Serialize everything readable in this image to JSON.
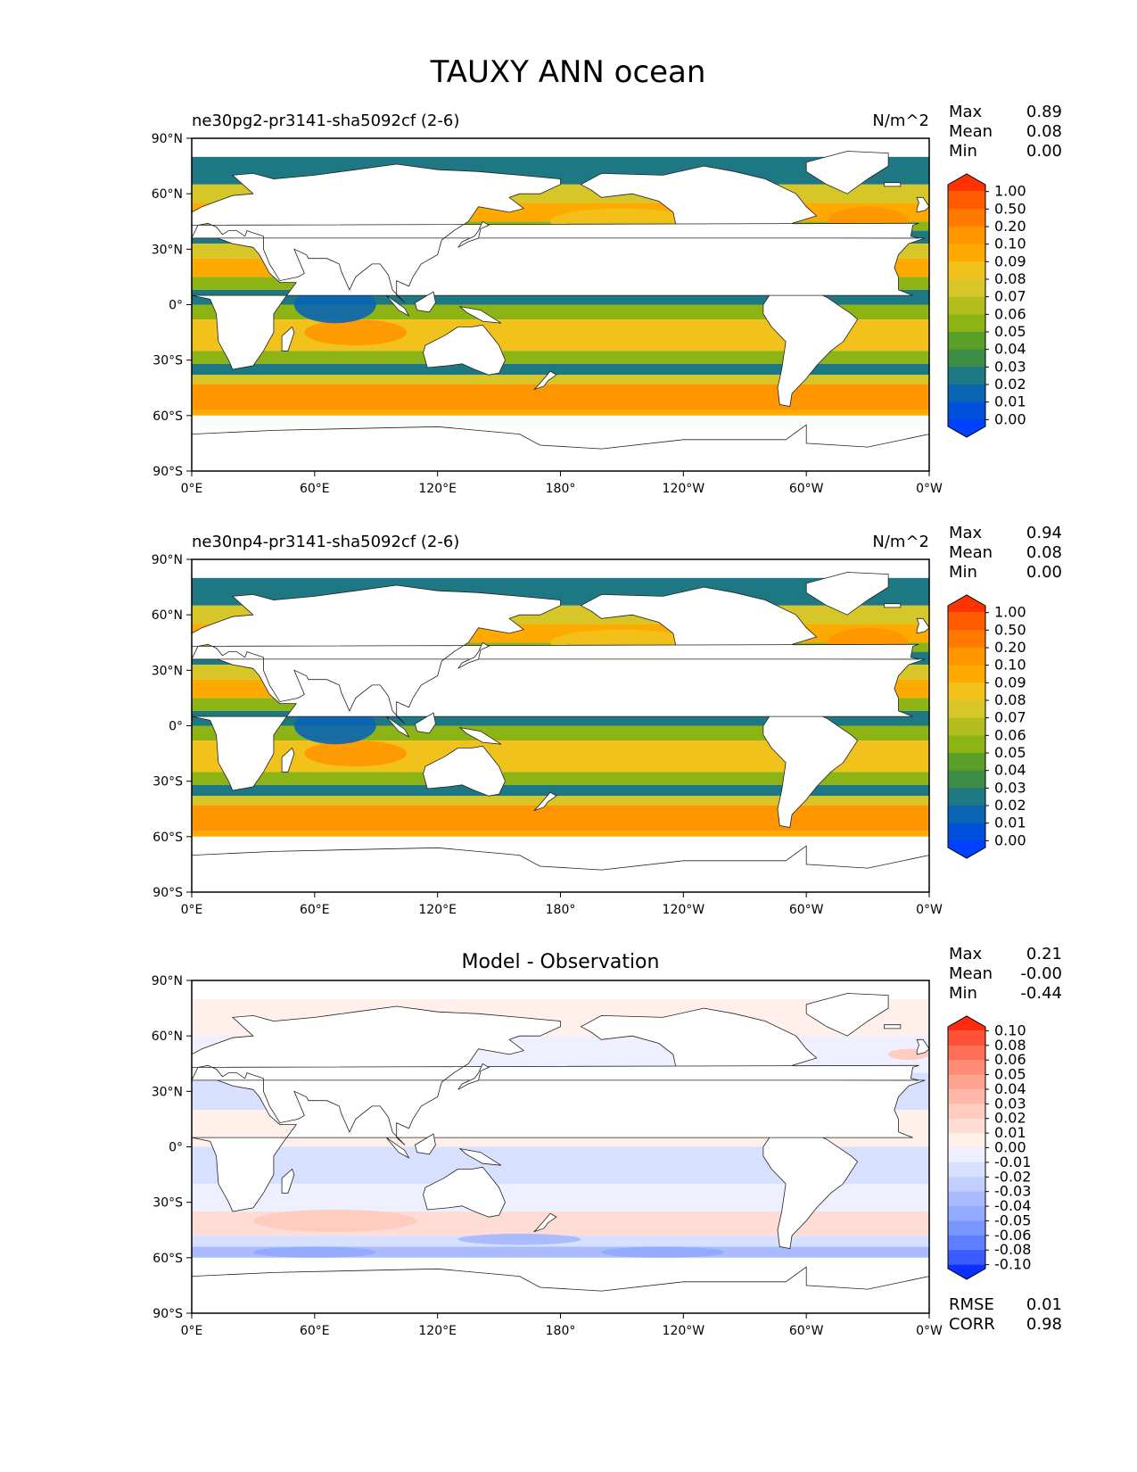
{
  "figure": {
    "title": "TAUXY ANN ocean"
  },
  "axes": {
    "yticks": [
      "90°N",
      "60°N",
      "30°N",
      "0°",
      "30°S",
      "60°S",
      "90°S"
    ],
    "xticks": [
      "0°E",
      "60°E",
      "120°E",
      "180°",
      "120°W",
      "60°W",
      "0°W"
    ]
  },
  "panels": [
    {
      "id": "test",
      "title_left": "ne30pg2-pr3141-sha5092cf (2-6)",
      "title_center": "",
      "units": "N/m^2",
      "stats": [
        {
          "label": "Max",
          "value": "0.89"
        },
        {
          "label": "Mean",
          "value": "0.08"
        },
        {
          "label": "Min",
          "value": "0.00"
        }
      ],
      "bottom_stats": [],
      "colorbar": {
        "levels": [
          "1.00",
          "0.50",
          "0.20",
          "0.10",
          "0.09",
          "0.08",
          "0.07",
          "0.06",
          "0.05",
          "0.04",
          "0.03",
          "0.02",
          "0.01",
          "0.00"
        ],
        "colors": [
          "#ff3300",
          "#ff5a00",
          "#ff7a00",
          "#ff9600",
          "#ffaa00",
          "#f2c21c",
          "#d6c628",
          "#b4be1e",
          "#8cb414",
          "#5aa028",
          "#3c8c46",
          "#1e7884",
          "#0a64b4",
          "#0050dc",
          "#0041ff"
        ]
      }
    },
    {
      "id": "reference",
      "title_left": "ne30np4-pr3141-sha5092cf (2-6)",
      "title_center": "",
      "units": "N/m^2",
      "stats": [
        {
          "label": "Max",
          "value": "0.94"
        },
        {
          "label": "Mean",
          "value": "0.08"
        },
        {
          "label": "Min",
          "value": "0.00"
        }
      ],
      "bottom_stats": [],
      "colorbar": {
        "levels": [
          "1.00",
          "0.50",
          "0.20",
          "0.10",
          "0.09",
          "0.08",
          "0.07",
          "0.06",
          "0.05",
          "0.04",
          "0.03",
          "0.02",
          "0.01",
          "0.00"
        ],
        "colors": [
          "#ff3300",
          "#ff5a00",
          "#ff7a00",
          "#ff9600",
          "#ffaa00",
          "#f2c21c",
          "#d6c628",
          "#b4be1e",
          "#8cb414",
          "#5aa028",
          "#3c8c46",
          "#1e7884",
          "#0a64b4",
          "#0050dc",
          "#0041ff"
        ]
      }
    },
    {
      "id": "difference",
      "title_left": "",
      "title_center": "Model - Observation",
      "units": "",
      "stats": [
        {
          "label": "Max",
          "value": "0.21"
        },
        {
          "label": "Mean",
          "value": "-0.00"
        },
        {
          "label": "Min",
          "value": "-0.44"
        }
      ],
      "bottom_stats": [
        {
          "label": "RMSE",
          "value": "0.01"
        },
        {
          "label": "CORR",
          "value": "0.98"
        }
      ],
      "colorbar": {
        "levels": [
          "0.10",
          "0.08",
          "0.06",
          "0.05",
          "0.04",
          "0.03",
          "0.02",
          "0.01",
          "0.00",
          "-0.01",
          "-0.02",
          "-0.03",
          "-0.04",
          "-0.05",
          "-0.06",
          "-0.08",
          "-0.10"
        ],
        "colors": [
          "#ff2a10",
          "#ff5038",
          "#ff6e56",
          "#ff8c74",
          "#ffa290",
          "#ffb8a8",
          "#ffccc0",
          "#ffdcd4",
          "#fff0ec",
          "#eef0ff",
          "#d8e0ff",
          "#c2ceff",
          "#aabcff",
          "#92aaff",
          "#7a96ff",
          "#5c7eff",
          "#3a5cff",
          "#0a30ff"
        ]
      }
    }
  ],
  "chart_data": {
    "type": "heatmap",
    "title": "TAUXY ANN ocean",
    "variable": "TAUXY",
    "units": "N/m^2",
    "xlim": [
      0,
      360
    ],
    "ylim": [
      -90,
      90
    ],
    "panels": [
      {
        "name": "ne30pg2-pr3141-sha5092cf (2-6)",
        "max": 0.89,
        "mean": 0.08,
        "min": 0.0
      },
      {
        "name": "ne30np4-pr3141-sha5092cf (2-6)",
        "max": 0.94,
        "mean": 0.08,
        "min": 0.0
      },
      {
        "name": "Model - Observation",
        "max": 0.21,
        "mean": -0.0,
        "min": -0.44,
        "rmse": 0.01,
        "corr": 0.98
      }
    ],
    "contour_levels_field": [
      0.0,
      0.01,
      0.02,
      0.03,
      0.04,
      0.05,
      0.06,
      0.07,
      0.08,
      0.09,
      0.1,
      0.2,
      0.5,
      1.0
    ],
    "contour_levels_diff": [
      -0.1,
      -0.08,
      -0.06,
      -0.05,
      -0.04,
      -0.03,
      -0.02,
      -0.01,
      0.0,
      0.01,
      0.02,
      0.03,
      0.04,
      0.05,
      0.06,
      0.08,
      0.1
    ]
  }
}
